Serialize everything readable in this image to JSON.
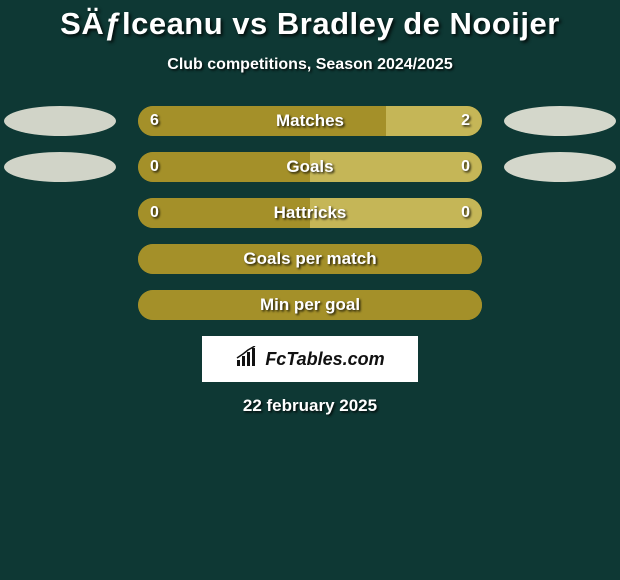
{
  "title": "SÄƒlceanu vs Bradley de Nooijer",
  "subtitle": "Club competitions, Season 2024/2025",
  "date": "22 february 2025",
  "logo_text": "FcTables.com",
  "background_color": "#0e3834",
  "ellipse_colors": {
    "left": "#d1d4c8",
    "right": "#d4d7cb"
  },
  "bar_bg": "#a49029",
  "bar_fill_left_color": "#a49029",
  "bar_fill_right_color": "#c5b657",
  "rows": [
    {
      "label": "Matches",
      "val_left": "6",
      "val_right": "2",
      "left_pct": 72,
      "right_pct": 28,
      "show_ellipses": true,
      "show_vals": true
    },
    {
      "label": "Goals",
      "val_left": "0",
      "val_right": "0",
      "left_pct": 50,
      "right_pct": 50,
      "show_ellipses": true,
      "show_vals": true
    },
    {
      "label": "Hattricks",
      "val_left": "0",
      "val_right": "0",
      "left_pct": 50,
      "right_pct": 50,
      "show_ellipses": false,
      "show_vals": true
    },
    {
      "label": "Goals per match",
      "val_left": "",
      "val_right": "",
      "left_pct": 100,
      "right_pct": 0,
      "show_ellipses": false,
      "show_vals": false
    },
    {
      "label": "Min per goal",
      "val_left": "",
      "val_right": "",
      "left_pct": 100,
      "right_pct": 0,
      "show_ellipses": false,
      "show_vals": false
    }
  ]
}
